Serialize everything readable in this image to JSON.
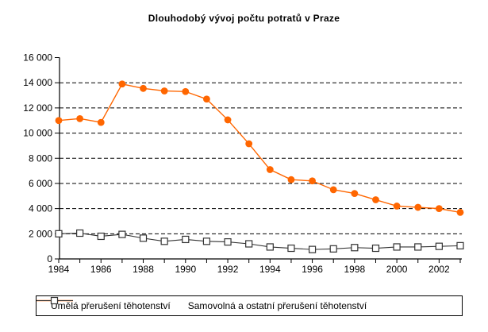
{
  "chart_data": {
    "type": "line",
    "title": "Dlouhodobý vývoj počtu potratů v Praze",
    "xlabel": "",
    "ylabel": "",
    "x": [
      1984,
      1985,
      1986,
      1987,
      1988,
      1989,
      1990,
      1991,
      1992,
      1993,
      1994,
      1995,
      1996,
      1997,
      1998,
      1999,
      2000,
      2001,
      2002,
      2003
    ],
    "x_tick_labels": [
      "1984",
      "1986",
      "1988",
      "1990",
      "1992",
      "1994",
      "1996",
      "1998",
      "2000",
      "2002"
    ],
    "y_tick_labels": [
      "0",
      "2 000",
      "4 000",
      "6 000",
      "8 000",
      "10 000",
      "12 000",
      "14 000",
      "16 000"
    ],
    "ylim": [
      0,
      16000
    ],
    "y_tick_step": 2000,
    "grid": "horizontal-dashed",
    "grid_color": "#000000",
    "legend_position": "bottom",
    "background": "#ffffff",
    "series": [
      {
        "name": "Umělá přerušení těhotenství",
        "color": "#FF6600",
        "marker": "filled-circle",
        "values": [
          11000,
          11150,
          10850,
          13900,
          13550,
          13350,
          13300,
          12700,
          11050,
          9150,
          7100,
          6300,
          6200,
          5500,
          5200,
          4700,
          4200,
          4100,
          4000,
          3700
        ]
      },
      {
        "name": "Samovolná a ostatní přerušení těhotenství",
        "color": "#333333",
        "marker": "open-square",
        "values": [
          2000,
          2050,
          1800,
          1950,
          1650,
          1400,
          1550,
          1400,
          1350,
          1200,
          950,
          850,
          750,
          800,
          900,
          850,
          950,
          950,
          1000,
          1050
        ]
      }
    ]
  }
}
